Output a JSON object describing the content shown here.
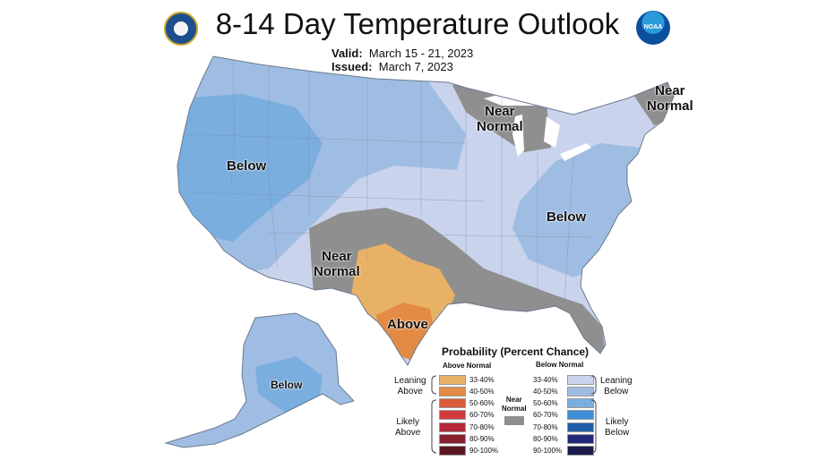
{
  "title": "8-14 Day Temperature Outlook",
  "valid_label": "Valid:",
  "valid_dates": "March 15 - 21, 2023",
  "issued_label": "Issued:",
  "issued_date": "March 7, 2023",
  "noaa_text": "NOAA",
  "regions": {
    "below_west": "Below",
    "near_normal_south": "Near\nNormal",
    "above": "Above",
    "near_normal_lakes": "Near\nNormal",
    "near_normal_ne": "Near\nNormal",
    "below_east": "Below",
    "below_alaska": "Below"
  },
  "legend": {
    "title": "Probability (Percent Chance)",
    "above_head": "Above Normal",
    "below_head": "Below Normal",
    "near_head": "Near\nNormal",
    "leaning_above": "Leaning\nAbove",
    "likely_above": "Likely\nAbove",
    "leaning_below": "Leaning\nBelow",
    "likely_below": "Likely\nBelow",
    "above_rows": [
      {
        "label": "33-40%",
        "color": "#e8b266"
      },
      {
        "label": "40-50%",
        "color": "#e38b44"
      },
      {
        "label": "50-60%",
        "color": "#dc5c3a"
      },
      {
        "label": "60-70%",
        "color": "#d13a3a"
      },
      {
        "label": "70-80%",
        "color": "#b8283b"
      },
      {
        "label": "80-90%",
        "color": "#8a1f2f"
      },
      {
        "label": "90-100%",
        "color": "#5b1720"
      }
    ],
    "below_rows": [
      {
        "label": "33-40%",
        "color": "#c9d3ec"
      },
      {
        "label": "40-50%",
        "color": "#9fbde3"
      },
      {
        "label": "50-60%",
        "color": "#7aaedf"
      },
      {
        "label": "60-70%",
        "color": "#3f8fd6"
      },
      {
        "label": "70-80%",
        "color": "#1f5fa8"
      },
      {
        "label": "80-90%",
        "color": "#23287a"
      },
      {
        "label": "90-100%",
        "color": "#1a1a4d"
      }
    ],
    "near_color": "#8f8f8f"
  },
  "colors": {
    "leaning_below": "#c9d3ec",
    "below_40_50": "#9fbde3",
    "below_50_60": "#7aaedf",
    "leaning_above": "#e8b266",
    "above_40_50": "#e38b44",
    "near_normal": "#8f8f8f"
  }
}
